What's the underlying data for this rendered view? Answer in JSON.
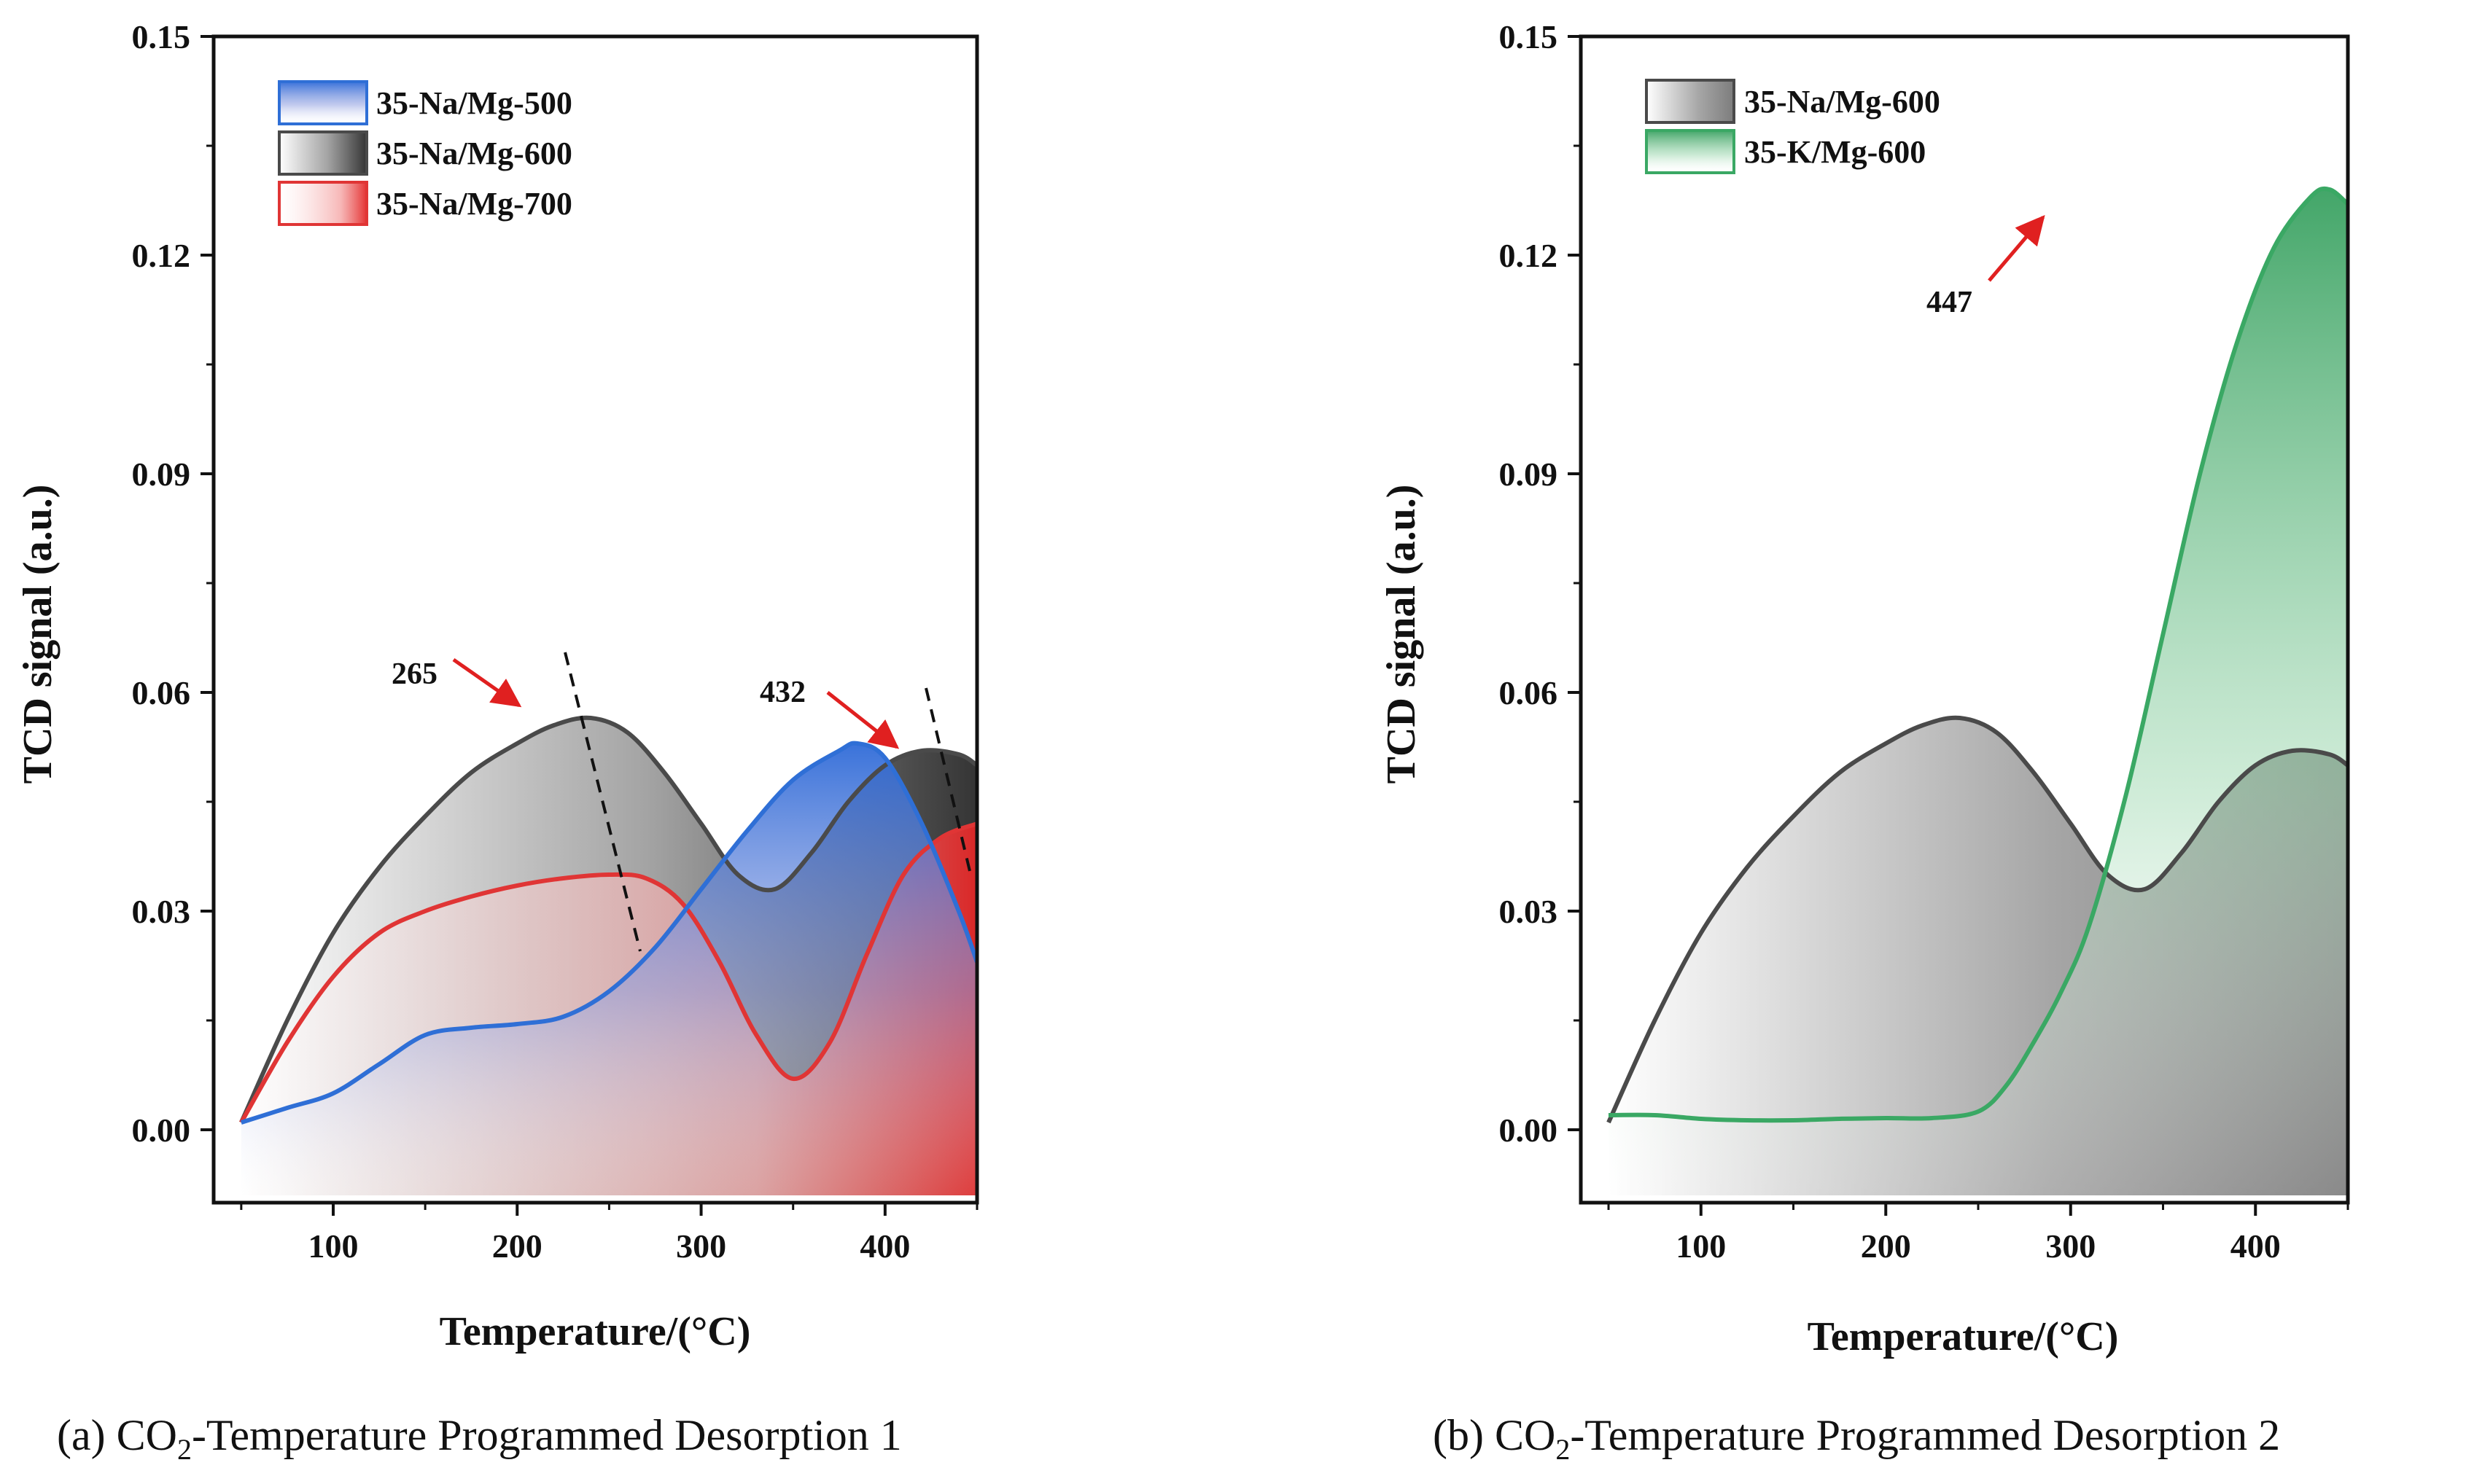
{
  "figure": {
    "captions": [
      {
        "prefix": "(a) CO",
        "sub": "2",
        "suffix": "-Temperature Programmed Desorption 1"
      },
      {
        "prefix": "(b) CO",
        "sub": "2",
        "suffix": "-Temperature Programmed Desorption 2"
      }
    ]
  },
  "chart_data": [
    {
      "type": "area",
      "xlabel": "Temperature/(°C)",
      "ylabel": "TCD signal (a.u.)",
      "xlim": [
        35,
        450
      ],
      "ylim": [
        -0.01,
        0.15
      ],
      "xticks": [
        "100",
        "200",
        "300",
        "400"
      ],
      "xtick_values": [
        100,
        200,
        300,
        400
      ],
      "yticks": [
        "0.00",
        "0.03",
        "0.06",
        "0.09",
        "0.12",
        "0.15"
      ],
      "ytick_values": [
        0,
        0.03,
        0.06,
        0.09,
        0.12,
        0.15
      ],
      "legend_position": "top-left",
      "series": [
        {
          "name": "35-Na/Mg-600",
          "color": "#4a4a4a",
          "x": [
            50,
            75,
            100,
            125,
            150,
            175,
            200,
            220,
            240,
            260,
            280,
            300,
            320,
            340,
            360,
            380,
            400,
            420,
            440,
            450
          ],
          "y": [
            0.001,
            0.015,
            0.027,
            0.036,
            0.043,
            0.049,
            0.053,
            0.0555,
            0.0565,
            0.0545,
            0.049,
            0.042,
            0.035,
            0.033,
            0.038,
            0.045,
            0.05,
            0.052,
            0.0515,
            0.05
          ]
        },
        {
          "name": "35-Na/Mg-700",
          "color": "#e03535",
          "x": [
            50,
            75,
            100,
            125,
            150,
            175,
            200,
            225,
            250,
            270,
            290,
            310,
            330,
            350,
            370,
            390,
            410,
            430,
            450
          ],
          "y": [
            0.001,
            0.012,
            0.021,
            0.027,
            0.03,
            0.032,
            0.0335,
            0.0345,
            0.035,
            0.0345,
            0.031,
            0.023,
            0.013,
            0.007,
            0.012,
            0.024,
            0.035,
            0.04,
            0.042
          ]
        },
        {
          "name": "35-Na/Mg-500",
          "color": "#2f6fd6",
          "x": [
            50,
            75,
            100,
            125,
            150,
            175,
            200,
            225,
            250,
            275,
            300,
            325,
            350,
            375,
            385,
            400,
            420,
            440,
            450
          ],
          "y": [
            0.001,
            0.003,
            0.005,
            0.009,
            0.013,
            0.014,
            0.0145,
            0.0155,
            0.019,
            0.025,
            0.033,
            0.041,
            0.048,
            0.052,
            0.053,
            0.051,
            0.042,
            0.03,
            0.023
          ]
        }
      ],
      "annotations": [
        {
          "text": "265",
          "x": 205,
          "y": 0.058
        },
        {
          "text": "432",
          "x": 405,
          "y": 0.053
        }
      ]
    },
    {
      "type": "area",
      "xlabel": "Temperature/(°C)",
      "ylabel": "TCD signal (a.u.)",
      "xlim": [
        35,
        450
      ],
      "ylim": [
        -0.01,
        0.15
      ],
      "xticks": [
        "100",
        "200",
        "300",
        "400"
      ],
      "xtick_values": [
        100,
        200,
        300,
        400
      ],
      "yticks": [
        "0.00",
        "0.03",
        "0.06",
        "0.09",
        "0.12",
        "0.15"
      ],
      "ytick_values": [
        0,
        0.03,
        0.06,
        0.09,
        0.12,
        0.15
      ],
      "legend_position": "top-left",
      "series": [
        {
          "name": "35-Na/Mg-600",
          "color": "#4a4a4a",
          "x": [
            50,
            75,
            100,
            125,
            150,
            175,
            200,
            220,
            240,
            260,
            280,
            300,
            320,
            340,
            360,
            380,
            400,
            420,
            440,
            450
          ],
          "y": [
            0.001,
            0.015,
            0.027,
            0.036,
            0.043,
            0.049,
            0.053,
            0.0555,
            0.0565,
            0.0545,
            0.049,
            0.042,
            0.035,
            0.033,
            0.038,
            0.045,
            0.05,
            0.052,
            0.0515,
            0.05
          ]
        },
        {
          "name": "35-K/Mg-600",
          "color": "#3aa864",
          "x": [
            50,
            75,
            100,
            125,
            150,
            175,
            200,
            225,
            250,
            265,
            280,
            295,
            310,
            330,
            350,
            370,
            390,
            410,
            430,
            440,
            450
          ],
          "y": [
            0.002,
            0.002,
            0.0015,
            0.0013,
            0.0013,
            0.0015,
            0.0016,
            0.0016,
            0.0025,
            0.006,
            0.012,
            0.019,
            0.028,
            0.046,
            0.068,
            0.09,
            0.108,
            0.121,
            0.128,
            0.129,
            0.127
          ]
        }
      ],
      "annotations": [
        {
          "text": "447",
          "x": 295,
          "y": 0.127
        }
      ]
    }
  ]
}
